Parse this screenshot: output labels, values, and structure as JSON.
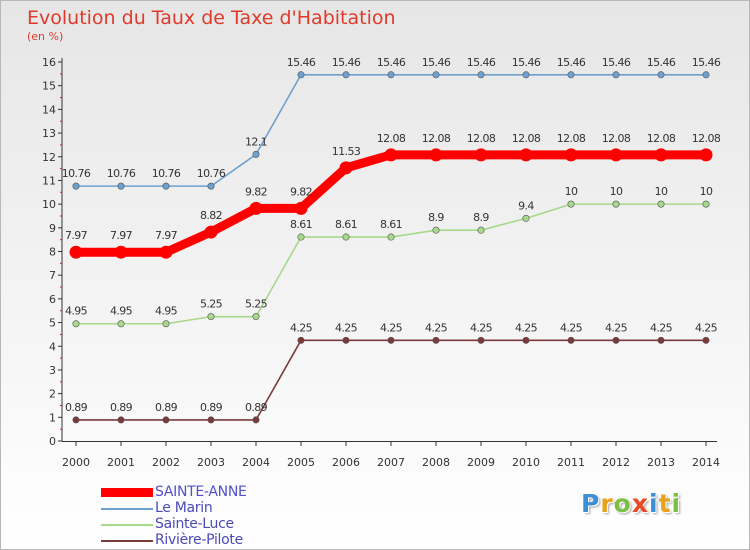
{
  "title": "Evolution du Taux de Taxe d'Habitation",
  "subtitle": "(en %)",
  "logo": {
    "letters": [
      "P",
      "r",
      "o",
      "x",
      "i",
      "t",
      "i"
    ],
    "colors": [
      "#3a8fd6",
      "#e8a21b",
      "#7cc043",
      "#e84a24",
      "#3a8fd6",
      "#e8a21b",
      "#7cc043"
    ]
  },
  "chart_data": {
    "type": "line",
    "title": "Evolution du Taux de Taxe d'Habitation",
    "ylabel": "(en %)",
    "x": [
      "2000",
      "2001",
      "2002",
      "2003",
      "2004",
      "2005",
      "2006",
      "2007",
      "2008",
      "2009",
      "2010",
      "2011",
      "2012",
      "2013",
      "2014"
    ],
    "yticks": [
      "0",
      "1",
      "2",
      "3",
      "4",
      "5",
      "6",
      "7",
      "8",
      "9",
      "10",
      "11",
      "12",
      "13",
      "14",
      "15",
      "16"
    ],
    "ylim": [
      0,
      16
    ],
    "grid": false,
    "legend_position": "bottom-left",
    "series": [
      {
        "name": "SAINTE-ANNE",
        "color": "#ff0000",
        "thick": true,
        "values": [
          7.97,
          7.97,
          7.97,
          8.82,
          9.82,
          9.82,
          11.53,
          12.08,
          12.08,
          12.08,
          12.08,
          12.08,
          12.08,
          12.08,
          12.08
        ],
        "labels": [
          "7.97",
          "7.97",
          "7.97",
          "8.82",
          "9.82",
          "9.82",
          "11.53",
          "12.08",
          "12.08",
          "12.08",
          "12.08",
          "12.08",
          "12.08",
          "12.08",
          "12.08"
        ]
      },
      {
        "name": "Le Marin",
        "color": "#6fa1cf",
        "thick": false,
        "values": [
          10.76,
          10.76,
          10.76,
          10.76,
          12.1,
          15.46,
          15.46,
          15.46,
          15.46,
          15.46,
          15.46,
          15.46,
          15.46,
          15.46,
          15.46
        ],
        "labels": [
          "10.76",
          "10.76",
          "10.76",
          "10.76",
          "12.1",
          "15.46",
          "15.46",
          "15.46",
          "15.46",
          "15.46",
          "15.46",
          "15.46",
          "15.46",
          "15.46",
          "15.46"
        ]
      },
      {
        "name": "Sainte-Luce",
        "color": "#a6d98a",
        "thick": false,
        "values": [
          4.95,
          4.95,
          4.95,
          5.25,
          5.25,
          8.61,
          8.61,
          8.61,
          8.9,
          8.9,
          9.4,
          10,
          10,
          10,
          10
        ],
        "labels": [
          "4.95",
          "4.95",
          "4.95",
          "5.25",
          "5.25",
          "8.61",
          "8.61",
          "8.61",
          "8.9",
          "8.9",
          "9.4",
          "10",
          "10",
          "10",
          "10"
        ]
      },
      {
        "name": "Rivière-Pilote",
        "color": "#7a3a3a",
        "thick": false,
        "values": [
          0.89,
          0.89,
          0.89,
          0.89,
          0.89,
          4.25,
          4.25,
          4.25,
          4.25,
          4.25,
          4.25,
          4.25,
          4.25,
          4.25,
          4.25
        ],
        "labels": [
          "0.89",
          "0.89",
          "0.89",
          "0.89",
          "0.89",
          "4.25",
          "4.25",
          "4.25",
          "4.25",
          "4.25",
          "4.25",
          "4.25",
          "4.25",
          "4.25",
          "4.25"
        ]
      }
    ]
  }
}
